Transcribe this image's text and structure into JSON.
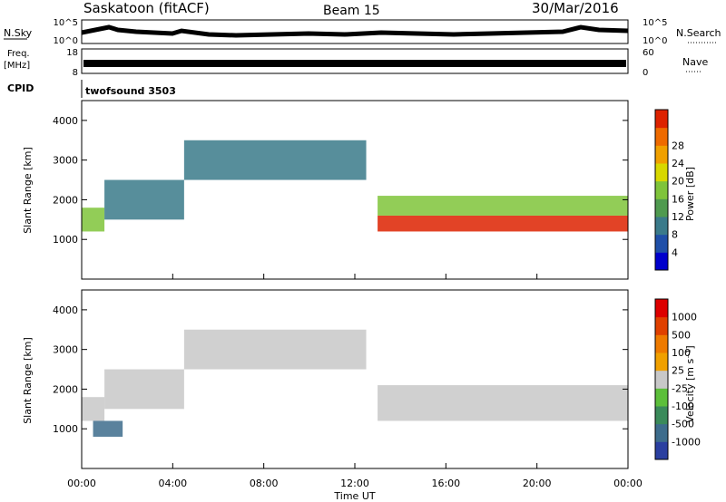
{
  "header": {
    "site": "Saskatoon (fitACF)",
    "beam": "Beam 15",
    "date": "30/Mar/2016"
  },
  "top_panels": {
    "nsky_label": "N.Sky",
    "nsky_max": "10^5",
    "nsky_min": "10^0",
    "nsearch_label": "N.Search",
    "nsearch_max": "10^5",
    "nsearch_min": "10^0",
    "freq_label": "Freq.",
    "freq_unit": "[MHz]",
    "freq_max": "18",
    "freq_min": "8",
    "nave_label": "Nave",
    "nave_max": "60",
    "nave_min": "0",
    "cpid_label": "CPID",
    "cpid_value": "twofsound 3503"
  },
  "chart_data": [
    {
      "type": "heatmap",
      "name": "power",
      "ylabel": "Slant Range [km]",
      "ylim": [
        0,
        4500
      ],
      "yticks": [
        "1000",
        "2000",
        "3000",
        "4000"
      ],
      "xlim_hours": [
        0,
        24
      ],
      "colorbar": {
        "label": "Power [dB]",
        "ticks": [
          "4",
          "8",
          "12",
          "16",
          "20",
          "24",
          "28"
        ],
        "colors": [
          "#0000cc",
          "#1f4fa8",
          "#3a7a8a",
          "#4f9a4f",
          "#7fc43a",
          "#d8d800",
          "#f0a000",
          "#ee6a00",
          "#dd2200"
        ]
      },
      "regions": [
        {
          "t0": 0.0,
          "t1": 1.0,
          "r0": 1200,
          "r1": 1800,
          "level": 4
        },
        {
          "t0": 1.0,
          "t1": 4.5,
          "r0": 1500,
          "r1": 2500,
          "level": 2
        },
        {
          "t0": 4.5,
          "t1": 12.5,
          "r0": 2500,
          "r1": 3500,
          "level": 2
        },
        {
          "t0": 13.0,
          "t1": 24.0,
          "r0": 1200,
          "r1": 1600,
          "level": 8
        },
        {
          "t0": 13.0,
          "t1": 24.0,
          "r0": 1600,
          "r1": 2100,
          "level": 4
        }
      ]
    },
    {
      "type": "heatmap",
      "name": "velocity",
      "ylabel": "Slant Range [km]",
      "ylim": [
        0,
        4500
      ],
      "yticks": [
        "1000",
        "2000",
        "3000",
        "4000"
      ],
      "xlim_hours": [
        0,
        24
      ],
      "colorbar": {
        "label": "Velocity [m s⁻¹]",
        "ticks": [
          "1000",
          "500",
          "100",
          "25",
          "-25",
          "-100",
          "-500",
          "-1000"
        ],
        "colors": [
          "#2a3fa0",
          "#3d6c8c",
          "#3a8a5a",
          "#5cbf3a",
          "#c8c8c8",
          "#f0a000",
          "#ee7a00",
          "#e04000",
          "#dd0000"
        ]
      },
      "regions": [
        {
          "t0": 0.0,
          "t1": 1.0,
          "r0": 1200,
          "r1": 1800,
          "level": 4
        },
        {
          "t0": 1.0,
          "t1": 4.5,
          "r0": 1500,
          "r1": 2500,
          "level": 4
        },
        {
          "t0": 4.5,
          "t1": 12.5,
          "r0": 2500,
          "r1": 3500,
          "level": 4
        },
        {
          "t0": 13.0,
          "t1": 24.0,
          "r0": 1200,
          "r1": 2100,
          "level": 4
        },
        {
          "t0": 0.5,
          "t1": 1.8,
          "r0": 800,
          "r1": 1200,
          "level": 1
        }
      ]
    }
  ],
  "xaxis": {
    "label": "Time UT",
    "ticks": [
      "00:00",
      "04:00",
      "08:00",
      "12:00",
      "16:00",
      "20:00",
      "00:00"
    ]
  }
}
